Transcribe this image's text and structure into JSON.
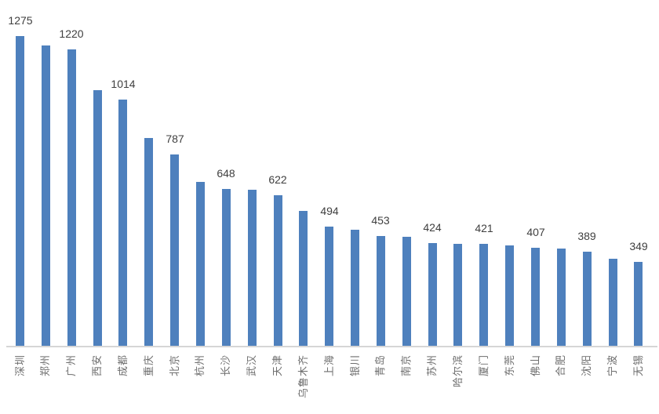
{
  "chart_data": {
    "type": "bar",
    "title": "",
    "xlabel": "",
    "ylabel": "",
    "grid": false,
    "legend": "none",
    "categories": [
      "深圳",
      "郑州",
      "广州",
      "西安",
      "成都",
      "重庆",
      "北京",
      "杭州",
      "长沙",
      "武汉",
      "天津",
      "乌鲁木齐",
      "上海",
      "银川",
      "青岛",
      "南京",
      "苏州",
      "哈尔滨",
      "厦门",
      "东莞",
      "佛山",
      "合肥",
      "沈阳",
      "宁波",
      "无锡"
    ],
    "values": [
      1275,
      1235,
      1220,
      1054,
      1014,
      856,
      787,
      676,
      648,
      643,
      622,
      558,
      494,
      478,
      453,
      451,
      424,
      422,
      421,
      416,
      407,
      401,
      389,
      359,
      349
    ],
    "labeled_indices": [
      0,
      2,
      4,
      6,
      8,
      10,
      12,
      14,
      16,
      18,
      20,
      22,
      24
    ],
    "shown_labels": [
      "1275",
      "1220",
      "1014",
      "787",
      "648",
      "622",
      "494",
      "453",
      "424",
      "421",
      "407",
      "389",
      "349"
    ],
    "colors": {
      "bar": "#4e80bd",
      "value_label": "#3f3f3f",
      "category_label": "#6e6e6e",
      "axis_line": "#d6d6d6"
    }
  }
}
